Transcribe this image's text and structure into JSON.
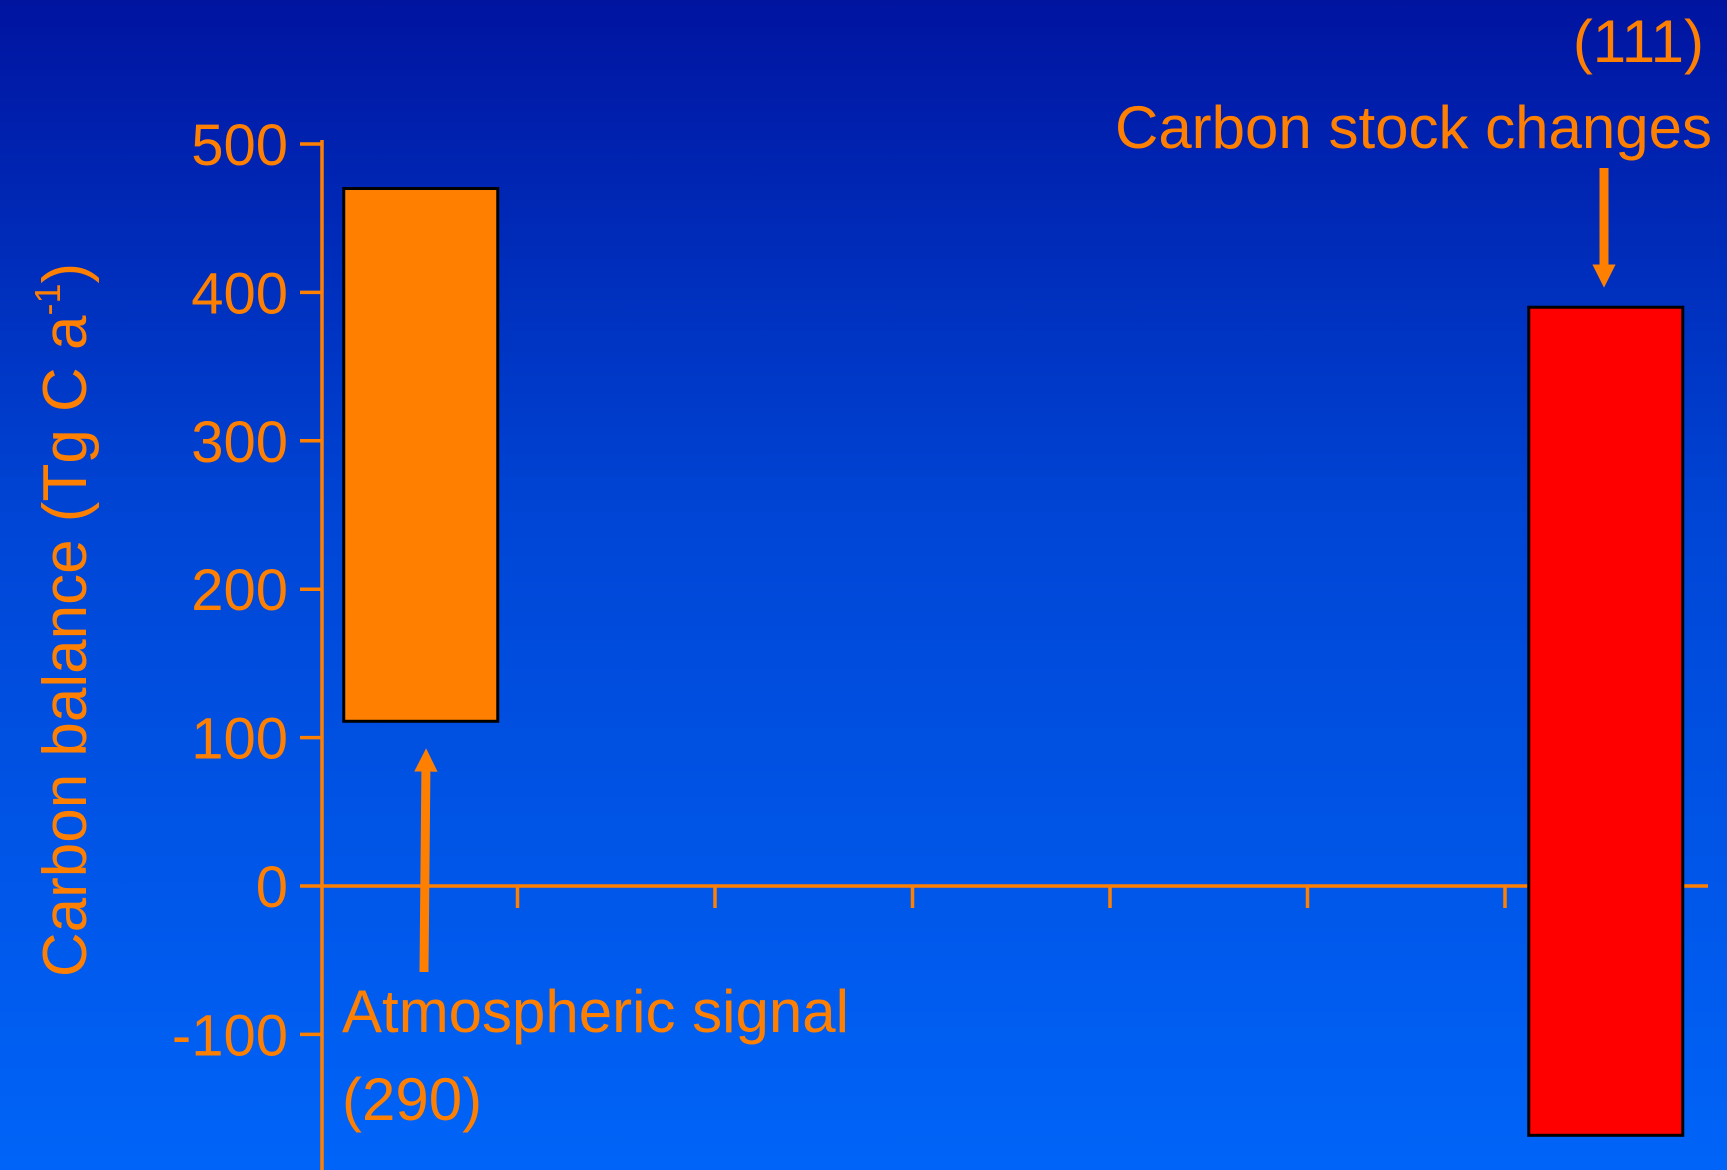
{
  "colors": {
    "axis": "#ff8000",
    "text": "#ff8000",
    "atmospheric_bar": "#ff8000",
    "stock_bar": "#ff0000",
    "bar_outline": "#000000"
  },
  "chart_data": {
    "type": "bar",
    "ylabel": "Carbon balance (Tg C a",
    "ylabel_superscript": "-1",
    "ylabel_close": ")",
    "ylim": [
      -190,
      500
    ],
    "yticks": [
      500,
      400,
      300,
      200,
      100,
      0,
      -100
    ],
    "ytick_labels": [
      "500",
      "400",
      "300",
      "200",
      "100",
      "0",
      "-100"
    ],
    "x_slots": 7,
    "grid": false,
    "legend": "none",
    "bars": [
      {
        "slot": 0,
        "low": 111,
        "high": 470,
        "color": "#ff8000",
        "annotation": [
          "Atmospheric signal",
          "(290)"
        ]
      },
      {
        "slot": 6,
        "low": -168,
        "high": 390,
        "color": "#ff0000",
        "annotation": [
          "Carbon stock changes",
          "(111)"
        ]
      }
    ]
  }
}
